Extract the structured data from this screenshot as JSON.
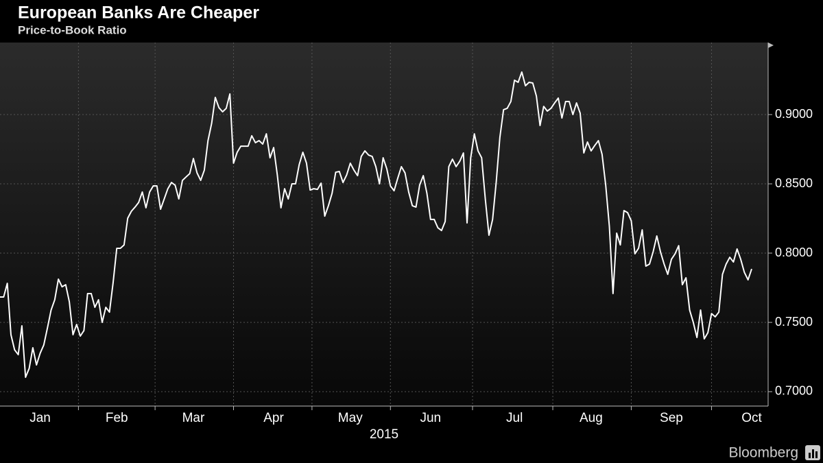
{
  "chart_data": {
    "type": "line",
    "title": "European Banks Are Cheaper",
    "subtitle": "Price-to-Book Ratio",
    "x_label": "2015",
    "source": "Bloomberg",
    "categories": [
      null,
      null,
      null,
      null,
      null,
      null,
      null,
      null,
      null,
      null,
      null,
      "Jan",
      null,
      null,
      null,
      null,
      null,
      null,
      null,
      null,
      null,
      null,
      null,
      null,
      null,
      null,
      null,
      null,
      null,
      null,
      null,
      null,
      "Feb",
      null,
      null,
      null,
      null,
      null,
      null,
      null,
      null,
      null,
      null,
      null,
      null,
      null,
      null,
      null,
      null,
      null,
      null,
      null,
      null,
      "Mar",
      null,
      null,
      null,
      null,
      null,
      null,
      null,
      null,
      null,
      null,
      null,
      null,
      null,
      null,
      null,
      null,
      null,
      null,
      null,
      null,
      null,
      "Apr",
      null,
      null,
      null,
      null,
      null,
      null,
      null,
      null,
      null,
      null,
      null,
      null,
      null,
      null,
      null,
      null,
      null,
      null,
      null,
      null,
      "May",
      null,
      null,
      null,
      null,
      null,
      null,
      null,
      null,
      null,
      null,
      null,
      null,
      null,
      null,
      null,
      null,
      null,
      null,
      null,
      null,
      null,
      "Jun",
      null,
      null,
      null,
      null,
      null,
      null,
      null,
      null,
      null,
      null,
      null,
      null,
      null,
      null,
      null,
      null,
      null,
      null,
      null,
      null,
      null,
      null,
      "Jul",
      null,
      null,
      null,
      null,
      null,
      null,
      null,
      null,
      null,
      null,
      null,
      null,
      null,
      null,
      null,
      null,
      null,
      null,
      null,
      null,
      "Aug",
      null,
      null,
      null,
      null,
      null,
      null,
      null,
      null,
      null,
      null,
      null,
      null,
      null,
      null,
      null,
      null,
      null,
      null,
      null,
      null,
      null,
      "Sep",
      null,
      null,
      null,
      null,
      null,
      null,
      null,
      null,
      null,
      null,
      null,
      null,
      null,
      null,
      null,
      null,
      null,
      null,
      null,
      null,
      null,
      "Oct"
    ],
    "series": [
      {
        "name": "Price-to-Book Ratio",
        "color": "#ffffff",
        "values": [
          0.7683,
          0.7683,
          0.7782,
          0.7411,
          0.7302,
          0.7267,
          0.7475,
          0.7104,
          0.7168,
          0.7317,
          0.7193,
          0.7277,
          0.7337,
          0.746,
          0.7589,
          0.7663,
          0.7812,
          0.7757,
          0.7772,
          0.7649,
          0.7411,
          0.7485,
          0.7401,
          0.7441,
          0.7708,
          0.7708,
          0.7609,
          0.7663,
          0.75,
          0.7609,
          0.7574,
          0.7787,
          0.8035,
          0.8035,
          0.8059,
          0.8252,
          0.8302,
          0.8332,
          0.8366,
          0.8441,
          0.8327,
          0.8441,
          0.8485,
          0.8485,
          0.8317,
          0.8391,
          0.8465,
          0.851,
          0.849,
          0.8391,
          0.8525,
          0.855,
          0.8574,
          0.8683,
          0.8579,
          0.8525,
          0.8599,
          0.8812,
          0.8936,
          0.9124,
          0.905,
          0.902,
          0.9045,
          0.9149,
          0.8649,
          0.8728,
          0.8772,
          0.8772,
          0.8772,
          0.8847,
          0.8797,
          0.8812,
          0.8787,
          0.8861,
          0.8688,
          0.8762,
          0.8564,
          0.8327,
          0.8465,
          0.8391,
          0.85,
          0.85,
          0.8639,
          0.8728,
          0.8649,
          0.8455,
          0.8465,
          0.846,
          0.8505,
          0.8267,
          0.8342,
          0.8431,
          0.8584,
          0.8589,
          0.851,
          0.8564,
          0.8649,
          0.8599,
          0.8559,
          0.8698,
          0.8738,
          0.8708,
          0.8698,
          0.8624,
          0.85,
          0.8688,
          0.8609,
          0.8485,
          0.845,
          0.854,
          0.8624,
          0.8579,
          0.8441,
          0.8342,
          0.8332,
          0.849,
          0.8559,
          0.8431,
          0.8243,
          0.8243,
          0.8183,
          0.8163,
          0.8228,
          0.8624,
          0.8678,
          0.8624,
          0.8663,
          0.8723,
          0.8218,
          0.8688,
          0.8861,
          0.8738,
          0.8688,
          0.8391,
          0.8129,
          0.8243,
          0.8515,
          0.8837,
          0.9035,
          0.9045,
          0.9094,
          0.9248,
          0.9233,
          0.9307,
          0.9208,
          0.9233,
          0.9228,
          0.9134,
          0.8921,
          0.9059,
          0.9025,
          0.9045,
          0.9084,
          0.9119,
          0.8975,
          0.9094,
          0.9094,
          0.9,
          0.9084,
          0.901,
          0.8723,
          0.8802,
          0.8738,
          0.8777,
          0.8812,
          0.8713,
          0.849,
          0.8193,
          0.7708,
          0.8144,
          0.8059,
          0.8307,
          0.8292,
          0.8233,
          0.7995,
          0.8035,
          0.8168,
          0.7906,
          0.7921,
          0.801,
          0.8124,
          0.801,
          0.7921,
          0.7847,
          0.7955,
          0.7995,
          0.8054,
          0.7772,
          0.7822,
          0.7589,
          0.75,
          0.7391,
          0.7589,
          0.7381,
          0.7426,
          0.7564,
          0.754,
          0.7574,
          0.7847,
          0.7921,
          0.797,
          0.7936,
          0.803,
          0.7955,
          0.7861,
          0.7807,
          0.7886
        ]
      }
    ],
    "ylim": [
      0.6896,
      0.952
    ],
    "yticks": [
      {
        "value": 0.7,
        "label": "0.7000"
      },
      {
        "value": 0.75,
        "label": "0.7500"
      },
      {
        "value": 0.8,
        "label": "0.8000"
      },
      {
        "value": 0.85,
        "label": "0.8500"
      },
      {
        "value": 0.9,
        "label": "0.9000"
      }
    ],
    "grid": true
  }
}
